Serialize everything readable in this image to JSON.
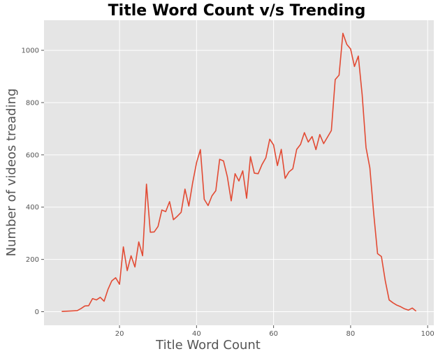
{
  "chart_data": {
    "type": "line",
    "title": "Title Word Count v/s Trending",
    "xlabel": "Title Word Count",
    "ylabel": "Number of videos treading",
    "xlim": [
      0.4,
      101.6
    ],
    "ylim": [
      -52,
      1115
    ],
    "xticks": [
      20,
      40,
      60,
      80,
      100
    ],
    "yticks": [
      0,
      200,
      400,
      600,
      800,
      1000
    ],
    "grid": true,
    "background": "#e5e5e5",
    "grid_color": "#ffffff",
    "line_color": "#e24a33",
    "series": [
      {
        "x": [
          5,
          9,
          10,
          11,
          12,
          13,
          14,
          15,
          16,
          17,
          18,
          19,
          20,
          21,
          22,
          23,
          24,
          25,
          26,
          27,
          28,
          29,
          30,
          31,
          32,
          33,
          34,
          35,
          36,
          37,
          38,
          39,
          40,
          41,
          42,
          43,
          44,
          45,
          46,
          47,
          48,
          49,
          50,
          51,
          52,
          53,
          54,
          55,
          56,
          57,
          58,
          59,
          60,
          61,
          62,
          63,
          64,
          65,
          66,
          67,
          68,
          69,
          70,
          71,
          72,
          73,
          74,
          75,
          76,
          77,
          78,
          79,
          80,
          81,
          82,
          83,
          84,
          85,
          86,
          87,
          88,
          89,
          90,
          91,
          92,
          93,
          94,
          95,
          96,
          97
        ],
        "y": [
          1,
          4,
          12,
          22,
          23,
          50,
          45,
          55,
          40,
          85,
          118,
          130,
          105,
          248,
          157,
          214,
          171,
          267,
          214,
          488,
          304,
          305,
          326,
          389,
          383,
          421,
          352,
          365,
          380,
          469,
          404,
          494,
          570,
          620,
          430,
          406,
          443,
          463,
          583,
          577,
          516,
          424,
          528,
          500,
          539,
          434,
          593,
          530,
          528,
          563,
          589,
          660,
          638,
          559,
          621,
          510,
          535,
          547,
          621,
          640,
          685,
          649,
          670,
          620,
          678,
          643,
          668,
          693,
          888,
          905,
          1065,
          1023,
          1005,
          938,
          978,
          830,
          628,
          550,
          375,
          222,
          211,
          118,
          45,
          34,
          25,
          19,
          11,
          6,
          14,
          2
        ]
      }
    ]
  }
}
